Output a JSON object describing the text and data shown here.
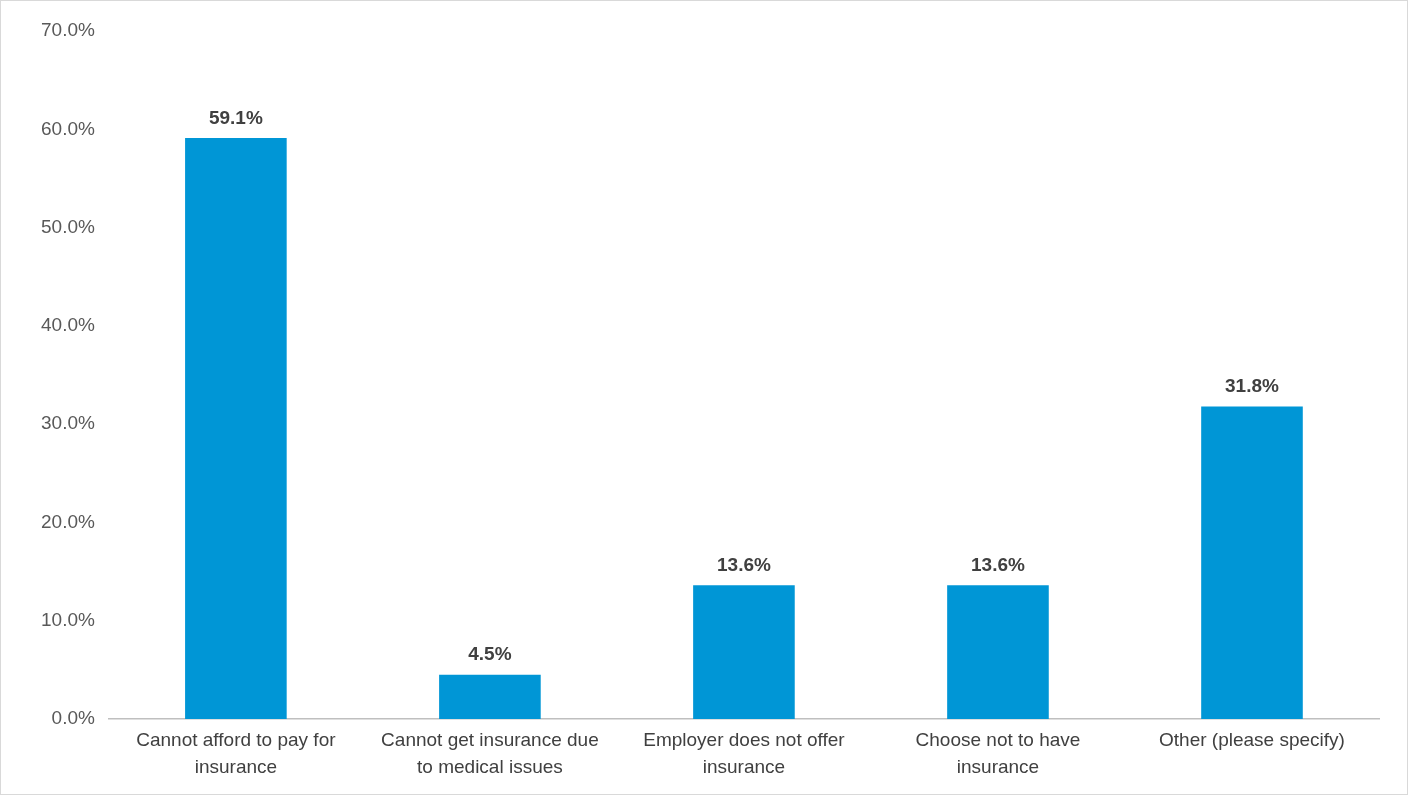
{
  "chart_data": {
    "type": "bar",
    "categories": [
      "Cannot afford to pay for insurance",
      "Cannot get insurance due to medical issues",
      "Employer does not offer insurance",
      "Choose not to have insurance",
      "Other (please specify)"
    ],
    "values": [
      59.1,
      4.5,
      13.6,
      13.6,
      31.8
    ],
    "value_labels": [
      "59.1%",
      "4.5%",
      "13.6%",
      "13.6%",
      "31.8%"
    ],
    "color": "#0096d6",
    "ylim": [
      0,
      70
    ],
    "yticks": [
      {
        "value": 0,
        "label": "0.0%"
      },
      {
        "value": 10,
        "label": "10.0%"
      },
      {
        "value": 20,
        "label": "20.0%"
      },
      {
        "value": 30,
        "label": "30.0%"
      },
      {
        "value": 40,
        "label": "40.0%"
      },
      {
        "value": 50,
        "label": "50.0%"
      },
      {
        "value": 60,
        "label": "60.0%"
      },
      {
        "value": 70,
        "label": "70.0%"
      }
    ],
    "grid": false,
    "legend": false
  }
}
